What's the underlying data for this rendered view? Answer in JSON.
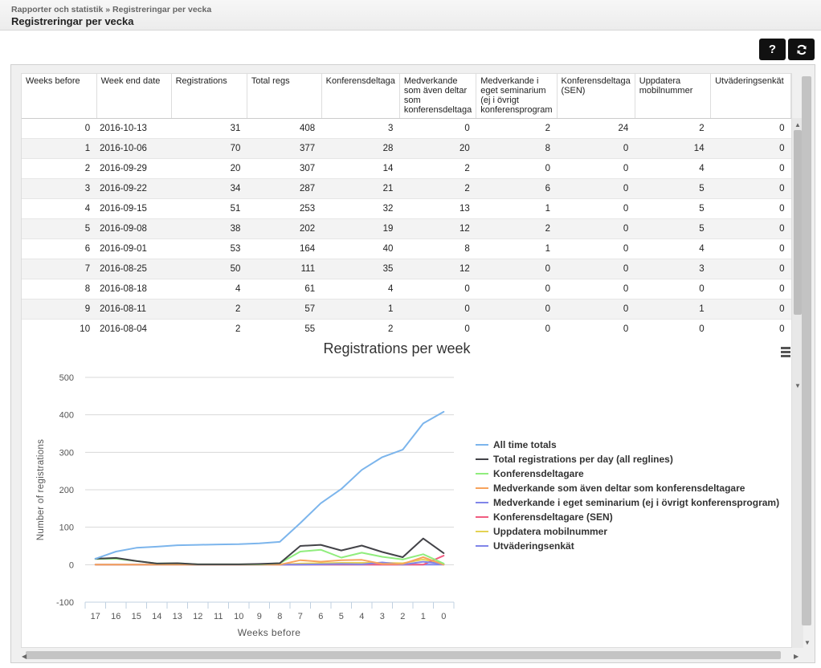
{
  "breadcrumb": {
    "parent": "Rapporter och statistik",
    "sep": " » ",
    "current": "Registreringar per vecka"
  },
  "page_title": "Registreringar per vecka",
  "buttons": {
    "help": "?",
    "refresh_icon": "refresh-icon"
  },
  "table": {
    "headers": [
      "Weeks before",
      "Week end date",
      "Registrations",
      "Total regs",
      "Konferensdeltaga",
      "Medverkande som även deltar som konferensdeltaga",
      "Medverkande i eget seminarium (ej i övrigt konferensprogram",
      "Konferensdeltaga (SEN)",
      "Uppdatera mobilnummer",
      "Utväderingsenkät"
    ],
    "rows": [
      [
        "0",
        "2016-10-13",
        "31",
        "408",
        "3",
        "0",
        "2",
        "24",
        "2",
        "0"
      ],
      [
        "1",
        "2016-10-06",
        "70",
        "377",
        "28",
        "20",
        "8",
        "0",
        "14",
        "0"
      ],
      [
        "2",
        "2016-09-29",
        "20",
        "307",
        "14",
        "2",
        "0",
        "0",
        "4",
        "0"
      ],
      [
        "3",
        "2016-09-22",
        "34",
        "287",
        "21",
        "2",
        "6",
        "0",
        "5",
        "0"
      ],
      [
        "4",
        "2016-09-15",
        "51",
        "253",
        "32",
        "13",
        "1",
        "0",
        "5",
        "0"
      ],
      [
        "5",
        "2016-09-08",
        "38",
        "202",
        "19",
        "12",
        "2",
        "0",
        "5",
        "0"
      ],
      [
        "6",
        "2016-09-01",
        "53",
        "164",
        "40",
        "8",
        "1",
        "0",
        "4",
        "0"
      ],
      [
        "7",
        "2016-08-25",
        "50",
        "111",
        "35",
        "12",
        "0",
        "0",
        "3",
        "0"
      ],
      [
        "8",
        "2016-08-18",
        "4",
        "61",
        "4",
        "0",
        "0",
        "0",
        "0",
        "0"
      ],
      [
        "9",
        "2016-08-11",
        "2",
        "57",
        "1",
        "0",
        "0",
        "0",
        "1",
        "0"
      ],
      [
        "10",
        "2016-08-04",
        "2",
        "55",
        "2",
        "0",
        "0",
        "0",
        "0",
        "0"
      ]
    ]
  },
  "chart_data": {
    "type": "line",
    "title": "Registrations per week",
    "xlabel": "Weeks before",
    "ylabel": "Number of registrations",
    "categories": [
      "17",
      "16",
      "15",
      "14",
      "13",
      "12",
      "11",
      "10",
      "9",
      "8",
      "7",
      "6",
      "5",
      "4",
      "3",
      "2",
      "1",
      "0"
    ],
    "ylim": [
      -100,
      500
    ],
    "yticks": [
      -100,
      0,
      100,
      200,
      300,
      400,
      500
    ],
    "legend_position": "right",
    "series": [
      {
        "name": "All time totals",
        "color": "#7cb5ec",
        "values": [
          16,
          35,
          45,
          48,
          52,
          53,
          54,
          55,
          57,
          61,
          111,
          164,
          202,
          253,
          287,
          307,
          377,
          408
        ]
      },
      {
        "name": "Total registrations per day (all reglines)",
        "color": "#434348",
        "values": [
          16,
          18,
          10,
          3,
          4,
          1,
          1,
          1,
          2,
          4,
          50,
          53,
          38,
          51,
          34,
          20,
          70,
          31
        ]
      },
      {
        "name": "Konferensdeltagare",
        "color": "#90ed7d",
        "values": [
          15,
          16,
          10,
          3,
          4,
          1,
          1,
          1,
          1,
          4,
          35,
          40,
          19,
          32,
          21,
          14,
          28,
          3
        ]
      },
      {
        "name": "Medverkande som även deltar som konferensdeltagare",
        "color": "#f7a35c",
        "values": [
          0,
          0,
          0,
          0,
          0,
          0,
          0,
          0,
          0,
          0,
          12,
          8,
          12,
          13,
          2,
          2,
          20,
          0
        ]
      },
      {
        "name": "Medverkande i eget seminarium (ej i övrigt konferensprogram)",
        "color": "#8085e9",
        "values": [
          0,
          0,
          0,
          0,
          0,
          0,
          0,
          0,
          0,
          0,
          0,
          1,
          2,
          1,
          6,
          0,
          8,
          2
        ]
      },
      {
        "name": "Konferensdeltagare (SEN)",
        "color": "#f15c80",
        "values": [
          0,
          0,
          0,
          0,
          0,
          0,
          0,
          0,
          0,
          0,
          0,
          0,
          0,
          0,
          0,
          0,
          0,
          24
        ]
      },
      {
        "name": "Uppdatera mobilnummer",
        "color": "#e4d354",
        "values": [
          0,
          0,
          0,
          0,
          0,
          0,
          0,
          0,
          1,
          0,
          3,
          4,
          5,
          5,
          5,
          4,
          14,
          2
        ]
      },
      {
        "name": "Utväderingsenkät",
        "color": "#8085e8",
        "values": [
          0,
          0,
          0,
          0,
          0,
          0,
          0,
          0,
          0,
          0,
          0,
          0,
          0,
          0,
          0,
          0,
          0,
          0
        ]
      }
    ]
  }
}
